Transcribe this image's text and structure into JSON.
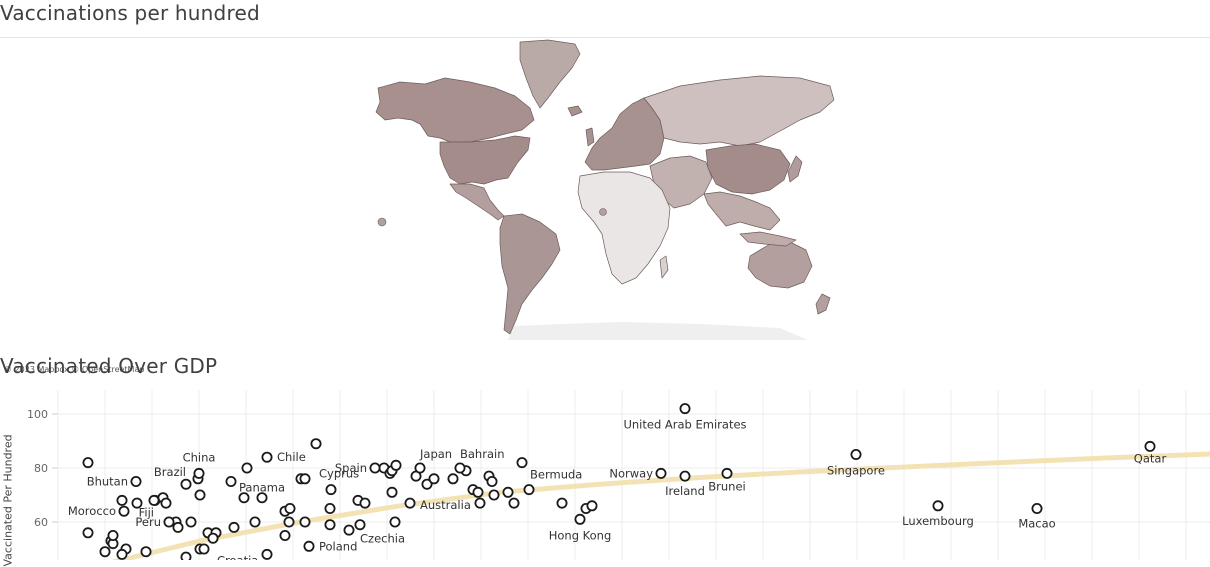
{
  "map": {
    "title": "Vaccinations per hundred",
    "credit": "© 2023 Mapbox © OpenStreetMap"
  },
  "chart": {
    "title": "Vaccinated Over GDP",
    "y_axis_title": "Vaccinated Per Hundred"
  },
  "colors": {
    "marker": "#1a1a1a",
    "trend": "#f3e3b4",
    "grid": "#ececec",
    "land_dark": "#a48c8b",
    "land_mid": "#b7a4a2",
    "land_light": "#cdbfbd",
    "land_pale": "#e9e6e5"
  },
  "chart_data": {
    "type": "scatter",
    "title": "Vaccinated Over GDP",
    "ylabel": "Vaccinated Per Hundred",
    "xlabel": "",
    "y_ticks": [
      60,
      80,
      100
    ],
    "grid": true,
    "labeled_points": [
      {
        "label": "Qatar",
        "x": 1150,
        "y": 88
      },
      {
        "label": "United Arab Emirates",
        "x": 685,
        "y": 102
      },
      {
        "label": "Singapore",
        "x": 856,
        "y": 85
      },
      {
        "label": "Luxembourg",
        "x": 938,
        "y": 66
      },
      {
        "label": "Macao",
        "x": 1037,
        "y": 65
      },
      {
        "label": "Norway",
        "x": 661,
        "y": 78
      },
      {
        "label": "Ireland",
        "x": 685,
        "y": 77
      },
      {
        "label": "Brunei",
        "x": 727,
        "y": 78
      },
      {
        "label": "Hong Kong",
        "x": 580,
        "y": 61
      },
      {
        "label": "Bermuda",
        "x": 522,
        "y": 82
      },
      {
        "label": "Bahrain",
        "x": 460,
        "y": 80
      },
      {
        "label": "Japan",
        "x": 420,
        "y": 80
      },
      {
        "label": "Australia",
        "x": 480,
        "y": 67
      },
      {
        "label": "Spain",
        "x": 375,
        "y": 80
      },
      {
        "label": "Cyprus",
        "x": 331,
        "y": 72
      },
      {
        "label": "Chile",
        "x": 267,
        "y": 84
      },
      {
        "label": "China",
        "x": 199,
        "y": 78
      },
      {
        "label": "Brazil",
        "x": 186,
        "y": 74
      },
      {
        "label": "Panama",
        "x": 231,
        "y": 75
      },
      {
        "label": "Bhutan",
        "x": 136,
        "y": 75
      },
      {
        "label": "Morocco",
        "x": 124,
        "y": 64
      },
      {
        "label": "Fiji",
        "x": 154,
        "y": 68
      },
      {
        "label": "Peru",
        "x": 169,
        "y": 60
      },
      {
        "label": "Czechia",
        "x": 360,
        "y": 59
      },
      {
        "label": "Poland",
        "x": 309,
        "y": 51
      },
      {
        "label": "Croatia",
        "x": 267,
        "y": 48
      }
    ],
    "points": [
      {
        "x": 88,
        "y": 82
      },
      {
        "x": 88,
        "y": 56
      },
      {
        "x": 111,
        "y": 53
      },
      {
        "x": 113,
        "y": 52
      },
      {
        "x": 113,
        "y": 55
      },
      {
        "x": 122,
        "y": 68
      },
      {
        "x": 137,
        "y": 67
      },
      {
        "x": 155,
        "y": 68
      },
      {
        "x": 163,
        "y": 69
      },
      {
        "x": 166,
        "y": 67
      },
      {
        "x": 176,
        "y": 60
      },
      {
        "x": 178,
        "y": 58
      },
      {
        "x": 191,
        "y": 60
      },
      {
        "x": 200,
        "y": 70
      },
      {
        "x": 198,
        "y": 76
      },
      {
        "x": 208,
        "y": 56
      },
      {
        "x": 216,
        "y": 56
      },
      {
        "x": 213,
        "y": 54
      },
      {
        "x": 234,
        "y": 58
      },
      {
        "x": 244,
        "y": 69
      },
      {
        "x": 247,
        "y": 80
      },
      {
        "x": 255,
        "y": 60
      },
      {
        "x": 262,
        "y": 69
      },
      {
        "x": 285,
        "y": 64
      },
      {
        "x": 290,
        "y": 65
      },
      {
        "x": 289,
        "y": 60
      },
      {
        "x": 285,
        "y": 55
      },
      {
        "x": 301,
        "y": 76
      },
      {
        "x": 305,
        "y": 76
      },
      {
        "x": 305,
        "y": 60
      },
      {
        "x": 316,
        "y": 89
      },
      {
        "x": 330,
        "y": 65
      },
      {
        "x": 330,
        "y": 59
      },
      {
        "x": 349,
        "y": 57
      },
      {
        "x": 358,
        "y": 68
      },
      {
        "x": 365,
        "y": 67
      },
      {
        "x": 384,
        "y": 80
      },
      {
        "x": 390,
        "y": 78
      },
      {
        "x": 392,
        "y": 79
      },
      {
        "x": 396,
        "y": 81
      },
      {
        "x": 392,
        "y": 71
      },
      {
        "x": 395,
        "y": 60
      },
      {
        "x": 410,
        "y": 67
      },
      {
        "x": 416,
        "y": 77
      },
      {
        "x": 427,
        "y": 74
      },
      {
        "x": 434,
        "y": 76
      },
      {
        "x": 453,
        "y": 76
      },
      {
        "x": 466,
        "y": 79
      },
      {
        "x": 473,
        "y": 72
      },
      {
        "x": 478,
        "y": 71
      },
      {
        "x": 489,
        "y": 77
      },
      {
        "x": 492,
        "y": 75
      },
      {
        "x": 494,
        "y": 70
      },
      {
        "x": 508,
        "y": 71
      },
      {
        "x": 514,
        "y": 67
      },
      {
        "x": 529,
        "y": 72
      },
      {
        "x": 562,
        "y": 67
      },
      {
        "x": 586,
        "y": 65
      },
      {
        "x": 592,
        "y": 66
      },
      {
        "x": 126,
        "y": 50
      },
      {
        "x": 105,
        "y": 49
      },
      {
        "x": 146,
        "y": 49
      },
      {
        "x": 200,
        "y": 50
      },
      {
        "x": 204,
        "y": 50
      },
      {
        "x": 122,
        "y": 48
      },
      {
        "x": 186,
        "y": 47
      }
    ],
    "trend": [
      [
        100,
        44
      ],
      [
        200,
        53
      ],
      [
        300,
        60
      ],
      [
        400,
        66
      ],
      [
        500,
        71
      ],
      [
        600,
        74
      ],
      [
        700,
        76.5
      ],
      [
        800,
        78.5
      ],
      [
        900,
        80.3
      ],
      [
        1000,
        82
      ],
      [
        1100,
        83.6
      ],
      [
        1210,
        85.2
      ]
    ]
  }
}
